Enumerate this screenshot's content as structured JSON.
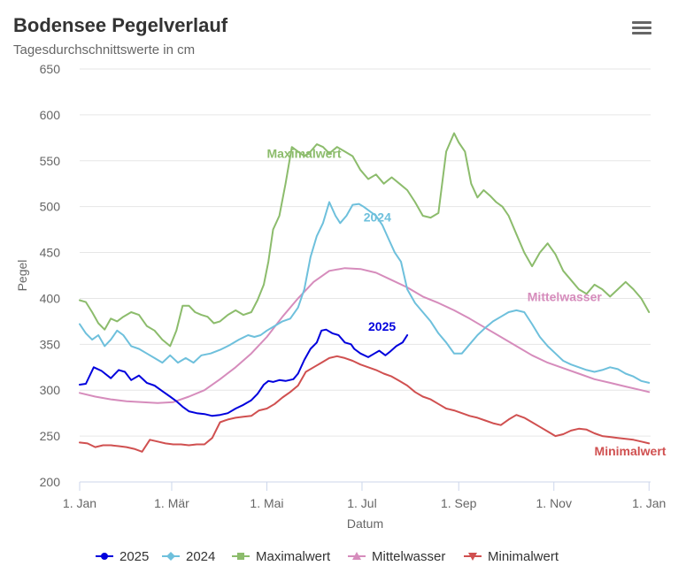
{
  "header": {
    "title": "Bodensee Pegelverlauf",
    "subtitle": "Tagesdurchschnittswerte in cm",
    "menu_icon": "hamburger-menu-icon"
  },
  "chart_data": {
    "type": "line",
    "title": "Bodensee Pegelverlauf",
    "subtitle": "Tagesdurchschnittswerte in cm",
    "xlabel": "Datum",
    "ylabel": "Pegel",
    "ylim": [
      200,
      650
    ],
    "yticks": [
      200,
      250,
      300,
      350,
      400,
      450,
      500,
      550,
      600,
      650
    ],
    "xlim": [
      0,
      366
    ],
    "xticks": [
      {
        "day": 0,
        "label": "1. Jan"
      },
      {
        "day": 59,
        "label": "1. Mär"
      },
      {
        "day": 120,
        "label": "1. Mai"
      },
      {
        "day": 181,
        "label": "1. Jul"
      },
      {
        "day": 243,
        "label": "1. Sep"
      },
      {
        "day": 304,
        "label": "1. Nov"
      },
      {
        "day": 365,
        "label": "1. Jan"
      }
    ],
    "grid": "horizontal",
    "legend": "bottom-center",
    "series": [
      {
        "name": "2025",
        "color": "#0000dd",
        "marker": "circle",
        "label": "2025",
        "label_at": [
          185,
          365
        ],
        "x": [
          0,
          4,
          9,
          14,
          20,
          25,
          29,
          33,
          38,
          43,
          48,
          53,
          58,
          62,
          66,
          70,
          75,
          80,
          85,
          90,
          95,
          100,
          105,
          110,
          114,
          118,
          121,
          124,
          128,
          132,
          137,
          140,
          144,
          148,
          152,
          155,
          158,
          162,
          166,
          170,
          174,
          176,
          180,
          185,
          189,
          192,
          196,
          199,
          203,
          207,
          210
        ],
        "y": [
          306,
          307,
          325,
          321,
          313,
          322,
          320,
          311,
          316,
          308,
          305,
          299,
          293,
          288,
          282,
          277,
          275,
          274,
          272,
          273,
          275,
          280,
          284,
          289,
          296,
          306,
          310,
          309,
          311,
          310,
          312,
          318,
          333,
          345,
          352,
          365,
          366,
          362,
          360,
          352,
          350,
          345,
          340,
          336,
          340,
          343,
          338,
          342,
          348,
          352,
          360
        ]
      },
      {
        "name": "2024",
        "color": "#6ec0dc",
        "marker": "diamond",
        "label": "2024",
        "label_at": [
          182,
          484
        ],
        "x": [
          0,
          4,
          8,
          12,
          16,
          20,
          24,
          28,
          33,
          38,
          43,
          48,
          53,
          58,
          63,
          68,
          73,
          78,
          84,
          90,
          96,
          102,
          108,
          112,
          116,
          120,
          125,
          130,
          135,
          140,
          144,
          148,
          152,
          156,
          160,
          164,
          167,
          171,
          175,
          179,
          182,
          186,
          190,
          194,
          198,
          202,
          206,
          210,
          215,
          220,
          225,
          230,
          235,
          240,
          245,
          250,
          255,
          260,
          265,
          270,
          275,
          280,
          285,
          290,
          295,
          300,
          305,
          310,
          315,
          320,
          325,
          330,
          335,
          340,
          345,
          350,
          355,
          360,
          365
        ],
        "y": [
          372,
          362,
          355,
          360,
          348,
          355,
          365,
          360,
          348,
          345,
          340,
          335,
          330,
          338,
          330,
          335,
          330,
          338,
          340,
          344,
          349,
          355,
          360,
          358,
          360,
          365,
          370,
          375,
          378,
          390,
          410,
          445,
          468,
          482,
          505,
          490,
          482,
          490,
          502,
          503,
          500,
          495,
          490,
          480,
          465,
          450,
          440,
          410,
          395,
          385,
          375,
          362,
          352,
          340,
          340,
          350,
          360,
          368,
          375,
          380,
          385,
          387,
          385,
          372,
          358,
          348,
          340,
          332,
          328,
          325,
          322,
          320,
          322,
          325,
          323,
          318,
          315,
          310,
          308
        ]
      },
      {
        "name": "Maximalwert",
        "color": "#8cbc6c",
        "marker": "square",
        "label": "Maximalwert",
        "label_at": [
          120,
          553
        ],
        "x": [
          0,
          4,
          8,
          12,
          16,
          20,
          24,
          28,
          33,
          38,
          43,
          48,
          53,
          58,
          62,
          66,
          70,
          74,
          78,
          82,
          86,
          90,
          95,
          100,
          105,
          110,
          114,
          118,
          121,
          124,
          128,
          132,
          136,
          140,
          144,
          148,
          152,
          156,
          160,
          165,
          170,
          175,
          180,
          185,
          190,
          195,
          200,
          205,
          210,
          215,
          220,
          225,
          230,
          235,
          240,
          243,
          247,
          251,
          255,
          259,
          263,
          267,
          271,
          275,
          280,
          285,
          290,
          295,
          300,
          305,
          310,
          315,
          320,
          325,
          330,
          335,
          340,
          345,
          350,
          355,
          360,
          365
        ],
        "y": [
          398,
          396,
          385,
          373,
          366,
          378,
          375,
          380,
          385,
          382,
          370,
          365,
          355,
          348,
          365,
          392,
          392,
          385,
          382,
          380,
          373,
          375,
          382,
          387,
          382,
          385,
          398,
          415,
          440,
          475,
          490,
          525,
          565,
          560,
          555,
          560,
          568,
          565,
          558,
          565,
          560,
          555,
          540,
          530,
          535,
          525,
          532,
          525,
          518,
          505,
          490,
          488,
          493,
          560,
          580,
          570,
          560,
          525,
          510,
          518,
          512,
          505,
          500,
          490,
          470,
          450,
          435,
          450,
          460,
          448,
          430,
          420,
          410,
          405,
          415,
          410,
          402,
          410,
          418,
          410,
          400,
          385
        ]
      },
      {
        "name": "Mittelwasser",
        "color": "#d68cbc",
        "marker": "triangle",
        "label": "Mittelwasser",
        "label_at": [
          287,
          397
        ],
        "x": [
          0,
          10,
          20,
          30,
          40,
          50,
          60,
          70,
          80,
          90,
          100,
          110,
          120,
          130,
          140,
          150,
          160,
          170,
          180,
          190,
          200,
          210,
          220,
          230,
          240,
          250,
          260,
          270,
          280,
          290,
          300,
          310,
          320,
          330,
          340,
          350,
          360,
          365
        ],
        "y": [
          297,
          293,
          290,
          288,
          287,
          286,
          287,
          293,
          300,
          312,
          325,
          340,
          358,
          380,
          400,
          418,
          430,
          433,
          432,
          428,
          420,
          412,
          402,
          395,
          387,
          378,
          368,
          358,
          348,
          338,
          330,
          324,
          318,
          312,
          308,
          304,
          300,
          298
        ]
      },
      {
        "name": "Minimalwert",
        "color": "#d05050",
        "marker": "triangle-down",
        "label": "Minimalwert",
        "label_at": [
          330,
          229
        ],
        "x": [
          0,
          5,
          10,
          15,
          20,
          25,
          30,
          35,
          40,
          45,
          50,
          55,
          60,
          65,
          70,
          75,
          80,
          85,
          90,
          95,
          100,
          105,
          110,
          115,
          120,
          125,
          130,
          135,
          140,
          145,
          150,
          155,
          160,
          165,
          170,
          175,
          180,
          185,
          190,
          195,
          200,
          205,
          210,
          215,
          220,
          225,
          230,
          235,
          240,
          245,
          250,
          255,
          260,
          265,
          270,
          275,
          280,
          285,
          290,
          295,
          300,
          305,
          310,
          315,
          320,
          325,
          330,
          335,
          340,
          345,
          350,
          355,
          360,
          365
        ],
        "y": [
          243,
          242,
          238,
          240,
          240,
          239,
          238,
          236,
          233,
          246,
          244,
          242,
          241,
          241,
          240,
          241,
          241,
          248,
          265,
          268,
          270,
          271,
          272,
          278,
          280,
          285,
          292,
          298,
          305,
          320,
          325,
          330,
          335,
          337,
          335,
          332,
          328,
          325,
          322,
          318,
          315,
          310,
          305,
          298,
          293,
          290,
          285,
          280,
          278,
          275,
          272,
          270,
          267,
          264,
          262,
          268,
          273,
          270,
          265,
          260,
          255,
          250,
          252,
          256,
          258,
          257,
          253,
          250,
          249,
          248,
          247,
          246,
          244,
          242
        ]
      }
    ]
  }
}
